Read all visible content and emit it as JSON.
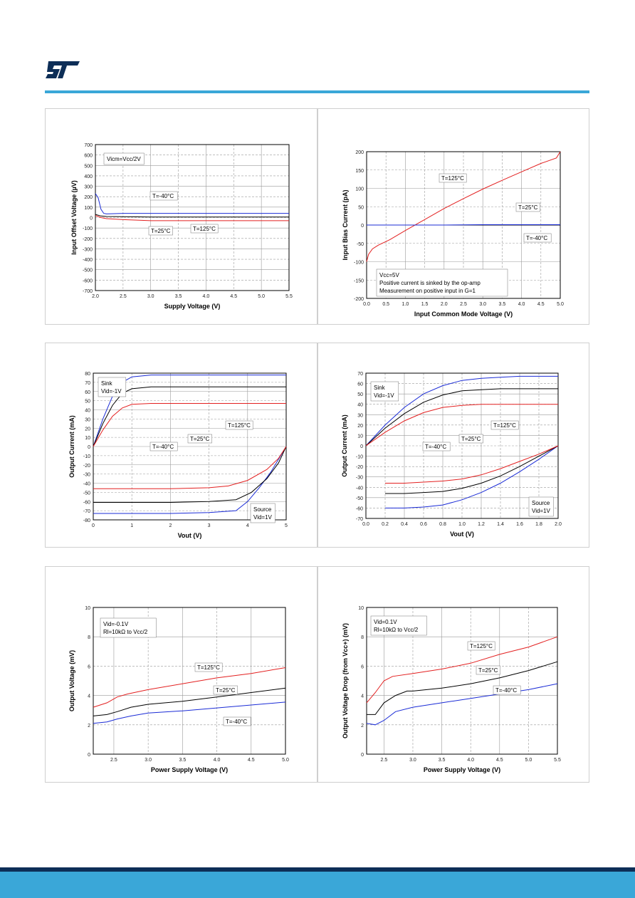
{
  "colors": {
    "accent": "#3aa7d8",
    "footer_dark": "#0d2e57",
    "red": "#e32020",
    "blue": "#1a2bd6",
    "black": "#000000"
  },
  "logo": {
    "name": "st-logo-icon"
  },
  "charts": {
    "c1": {
      "type": "line",
      "xlabel": "Supply Voltage (V)",
      "ylabel": "Input Offset Voltage (µV)",
      "xlim": [
        2.0,
        5.5
      ],
      "ylim": [
        -700,
        700
      ],
      "xticks": [
        "2.0",
        "2.5",
        "3.0",
        "3.5",
        "4.0",
        "4.5",
        "5.0",
        "5.5"
      ],
      "yticks": [
        "-700",
        "-600",
        "-500",
        "-400",
        "-300",
        "-200",
        "-100",
        "0",
        "100",
        "200",
        "300",
        "400",
        "500",
        "600",
        "700"
      ],
      "legend": [
        "Vicm=Vcc/2V"
      ],
      "annotations": [
        "T=-40°C",
        "T=25°C",
        "T=125°C"
      ],
      "series": [
        {
          "name": "T=-40°C",
          "color": "blue",
          "x": [
            2.0,
            2.05,
            2.1,
            2.15,
            2.2,
            2.5,
            3.0,
            4.0,
            5.0,
            5.5
          ],
          "y": [
            230,
            190,
            80,
            40,
            35,
            40,
            40,
            40,
            40,
            40
          ]
        },
        {
          "name": "T=25°C",
          "color": "black",
          "x": [
            2.0,
            2.1,
            2.2,
            2.5,
            3.0,
            4.0,
            5.0,
            5.5
          ],
          "y": [
            30,
            15,
            10,
            8,
            5,
            5,
            5,
            5
          ]
        },
        {
          "name": "T=125°C",
          "color": "red",
          "x": [
            2.0,
            2.1,
            2.2,
            2.5,
            3.0,
            4.0,
            5.0,
            5.5
          ],
          "y": [
            20,
            0,
            -10,
            -20,
            -30,
            -30,
            -30,
            -30
          ]
        }
      ]
    },
    "c2": {
      "type": "line",
      "xlabel": "Input Common Mode Voltage (V)",
      "ylabel": "Input Bias Current (pA)",
      "xlim": [
        0.0,
        5.0
      ],
      "ylim": [
        -200,
        200
      ],
      "xticks": [
        "0.0",
        "0.5",
        "1.0",
        "1.5",
        "2.0",
        "2.5",
        "3.0",
        "3.5",
        "4.0",
        "4.5",
        "5.0"
      ],
      "yticks": [
        "-200",
        "-150",
        "-100",
        "-50",
        "0",
        "50",
        "100",
        "150",
        "200"
      ],
      "legend": [
        "Vcc=5V",
        "Positive current is sinked by the op-amp",
        "Measurement on positive input in G=1"
      ],
      "annotations": [
        "T=125°C",
        "T=25°C",
        "T=-40°C"
      ],
      "series": [
        {
          "name": "T=125°C",
          "color": "red",
          "x": [
            0.0,
            0.05,
            0.15,
            0.3,
            0.6,
            1.0,
            1.5,
            2.0,
            2.5,
            3.0,
            3.5,
            4.0,
            4.5,
            4.9,
            5.0
          ],
          "y": [
            -100,
            -80,
            -65,
            -55,
            -40,
            -15,
            15,
            45,
            72,
            98,
            122,
            145,
            168,
            183,
            200
          ]
        },
        {
          "name": "T=25°C",
          "color": "black",
          "x": [
            0.0,
            1.0,
            2.0,
            3.0,
            4.0,
            5.0
          ],
          "y": [
            0,
            0,
            0,
            0,
            0,
            0
          ]
        },
        {
          "name": "T=-40°C",
          "color": "blue",
          "x": [
            0.0,
            1.0,
            2.0,
            3.0,
            4.0,
            5.0
          ],
          "y": [
            0,
            0,
            0,
            1,
            1,
            1
          ]
        }
      ]
    },
    "c3": {
      "type": "line",
      "xlabel": "Vout (V)",
      "ylabel": "Output Current (mA)",
      "xlim": [
        0,
        5
      ],
      "ylim": [
        -80,
        80
      ],
      "xticks": [
        "0",
        "1",
        "2",
        "3",
        "4",
        "5"
      ],
      "yticks": [
        "-80",
        "-70",
        "-60",
        "-50",
        "-40",
        "-30",
        "-20",
        "-10",
        "0",
        "10",
        "20",
        "30",
        "40",
        "50",
        "60",
        "70",
        "80"
      ],
      "legend": [
        "Sink",
        "Vid=-1V"
      ],
      "legend2": [
        "Source",
        "Vid=1V"
      ],
      "annotations": [
        "T=-40°C",
        "T=25°C",
        "T=125°C"
      ],
      "series": [
        {
          "name": "Sink T=-40°C",
          "color": "blue",
          "x": [
            0,
            0.25,
            0.5,
            0.75,
            1.0,
            1.5,
            2,
            3,
            4,
            5
          ],
          "y": [
            0,
            30,
            55,
            70,
            76,
            78,
            78,
            78,
            78,
            78
          ]
        },
        {
          "name": "Sink T=25°C",
          "color": "black",
          "x": [
            0,
            0.25,
            0.5,
            0.75,
            1.0,
            1.5,
            2,
            3,
            4,
            5
          ],
          "y": [
            0,
            25,
            45,
            58,
            63,
            65,
            65,
            65,
            65,
            65
          ]
        },
        {
          "name": "Sink T=125°C",
          "color": "red",
          "x": [
            0,
            0.25,
            0.5,
            0.75,
            1.0,
            1.5,
            2,
            3,
            4,
            5
          ],
          "y": [
            0,
            18,
            33,
            42,
            46,
            47,
            47,
            47,
            47,
            47
          ]
        },
        {
          "name": "Source T=-40°C",
          "color": "blue",
          "x": [
            0,
            1,
            2,
            3,
            3.7,
            4.0,
            4.3,
            4.6,
            4.8,
            5
          ],
          "y": [
            -73,
            -73,
            -73,
            -72,
            -70,
            -60,
            -45,
            -28,
            -14,
            0
          ]
        },
        {
          "name": "Source T=25°C",
          "color": "black",
          "x": [
            0,
            1,
            2,
            3,
            3.7,
            4.1,
            4.5,
            4.8,
            5
          ],
          "y": [
            -61,
            -61,
            -61,
            -60,
            -58,
            -50,
            -35,
            -18,
            0
          ]
        },
        {
          "name": "Source T=125°C",
          "color": "red",
          "x": [
            0,
            1,
            2,
            3,
            3.5,
            4.0,
            4.5,
            4.8,
            5
          ],
          "y": [
            -46,
            -46,
            -46,
            -45,
            -43,
            -37,
            -25,
            -13,
            0
          ]
        }
      ]
    },
    "c4": {
      "type": "line",
      "xlabel": "Vout (V)",
      "ylabel": "Output Current (mA)",
      "xlim": [
        0.0,
        2.0
      ],
      "ylim": [
        -70,
        70
      ],
      "xticks": [
        "0.0",
        "0.2",
        "0.4",
        "0.6",
        "0.8",
        "1.0",
        "1.2",
        "1.4",
        "1.6",
        "1.8",
        "2.0"
      ],
      "yticks": [
        "-70",
        "-60",
        "-50",
        "-40",
        "-30",
        "-20",
        "-10",
        "0",
        "10",
        "20",
        "30",
        "40",
        "50",
        "60",
        "70"
      ],
      "legend": [
        "Sink",
        "Vid=-1V"
      ],
      "legend2": [
        "Source",
        "Vid=1V"
      ],
      "annotations": [
        "T=-40°C",
        "T=25°C",
        "T=125°C"
      ],
      "series": [
        {
          "name": "Sink T=-40°C",
          "color": "blue",
          "x": [
            0,
            0.2,
            0.4,
            0.6,
            0.8,
            1.0,
            1.2,
            1.4,
            1.6,
            1.8,
            2.0
          ],
          "y": [
            0,
            20,
            37,
            50,
            58,
            63,
            65,
            66,
            67,
            67,
            67
          ]
        },
        {
          "name": "Sink T=25°C",
          "color": "black",
          "x": [
            0,
            0.2,
            0.4,
            0.6,
            0.8,
            1.0,
            1.2,
            1.4,
            1.6,
            1.8,
            2.0
          ],
          "y": [
            0,
            17,
            31,
            42,
            49,
            53,
            54,
            55,
            55,
            55,
            55
          ]
        },
        {
          "name": "Sink T=125°C",
          "color": "red",
          "x": [
            0,
            0.2,
            0.4,
            0.6,
            0.8,
            1.0,
            1.2,
            1.4,
            1.6,
            1.8,
            2.0
          ],
          "y": [
            0,
            13,
            24,
            32,
            37,
            39,
            40,
            40,
            40,
            40,
            40
          ]
        },
        {
          "name": "Source T=-40°C",
          "color": "blue",
          "x": [
            0.2,
            0.4,
            0.6,
            0.8,
            1.0,
            1.2,
            1.4,
            1.6,
            1.8,
            2.0
          ],
          "y": [
            -60,
            -60,
            -59,
            -57,
            -52,
            -45,
            -36,
            -25,
            -13,
            0
          ]
        },
        {
          "name": "Source T=25°C",
          "color": "black",
          "x": [
            0.2,
            0.4,
            0.6,
            0.8,
            1.0,
            1.2,
            1.4,
            1.6,
            1.8,
            2.0
          ],
          "y": [
            -46,
            -46,
            -45,
            -44,
            -41,
            -36,
            -29,
            -20,
            -10,
            0
          ]
        },
        {
          "name": "Source T=125°C",
          "color": "red",
          "x": [
            0.2,
            0.4,
            0.6,
            0.8,
            1.0,
            1.2,
            1.4,
            1.6,
            1.8,
            2.0
          ],
          "y": [
            -36,
            -36,
            -35,
            -34,
            -32,
            -28,
            -22,
            -15,
            -8,
            0
          ]
        }
      ]
    },
    "c5": {
      "type": "line",
      "xlabel": "Power Supply Voltage (V)",
      "ylabel": "Output Voltage (mV)",
      "xlim": [
        2.2,
        5.0
      ],
      "ylim": [
        0,
        10
      ],
      "xticks": [
        "2.5",
        "3.0",
        "3.5",
        "4.0",
        "4.5",
        "5.0"
      ],
      "yticks": [
        "0",
        "2",
        "4",
        "6",
        "8",
        "10"
      ],
      "legend": [
        "Vid=-0.1V",
        "Rl=10kΩ to Vcc/2"
      ],
      "annotations": [
        "T=125°C",
        "T=25°C",
        "T=-40°C"
      ],
      "series": [
        {
          "name": "T=125°C",
          "color": "red",
          "x": [
            2.2,
            2.4,
            2.55,
            2.7,
            3.0,
            3.5,
            4.0,
            4.5,
            5.0
          ],
          "y": [
            3.2,
            3.5,
            3.9,
            4.1,
            4.4,
            4.8,
            5.2,
            5.5,
            5.9
          ]
        },
        {
          "name": "T=25°C",
          "color": "black",
          "x": [
            2.2,
            2.4,
            2.55,
            2.75,
            3.0,
            3.5,
            4.0,
            4.5,
            5.0
          ],
          "y": [
            2.6,
            2.7,
            2.9,
            3.2,
            3.4,
            3.6,
            3.9,
            4.2,
            4.5
          ]
        },
        {
          "name": "T=-40°C",
          "color": "blue",
          "x": [
            2.2,
            2.4,
            2.55,
            2.75,
            3.0,
            3.5,
            4.0,
            4.5,
            5.0
          ],
          "y": [
            2.1,
            2.2,
            2.4,
            2.6,
            2.8,
            2.95,
            3.15,
            3.35,
            3.55
          ]
        }
      ]
    },
    "c6": {
      "type": "line",
      "xlabel": "Power Supply Voltage (V)",
      "ylabel": "Output Voltage Drop (from Vcc+) (mV)",
      "xlim": [
        2.2,
        5.5
      ],
      "ylim": [
        0,
        10
      ],
      "xticks": [
        "2.5",
        "3.0",
        "3.5",
        "4.0",
        "4.5",
        "5.0",
        "5.5"
      ],
      "yticks": [
        "0",
        "2",
        "4",
        "6",
        "8",
        "10"
      ],
      "legend": [
        "Vid=0.1V",
        "Rl=10kΩ to Vcc/2"
      ],
      "annotations": [
        "T=125°C",
        "T=25°C",
        "T=-40°C"
      ],
      "series": [
        {
          "name": "T=125°C",
          "color": "red",
          "x": [
            2.2,
            2.35,
            2.5,
            2.65,
            3.0,
            3.5,
            4.0,
            4.5,
            5.0,
            5.5
          ],
          "y": [
            3.5,
            4.2,
            5.0,
            5.3,
            5.5,
            5.8,
            6.2,
            6.8,
            7.3,
            8.0
          ]
        },
        {
          "name": "T=25°C",
          "color": "black",
          "x": [
            2.2,
            2.35,
            2.5,
            2.7,
            2.9,
            3.0,
            3.5,
            4.0,
            4.5,
            5.0,
            5.5
          ],
          "y": [
            2.7,
            2.7,
            3.5,
            4.0,
            4.3,
            4.3,
            4.5,
            4.8,
            5.2,
            5.7,
            6.3
          ]
        },
        {
          "name": "T=-40°C",
          "color": "blue",
          "x": [
            2.2,
            2.35,
            2.5,
            2.7,
            3.0,
            3.5,
            4.0,
            4.5,
            5.0,
            5.5
          ],
          "y": [
            2.1,
            2.0,
            2.3,
            2.9,
            3.2,
            3.5,
            3.8,
            4.1,
            4.4,
            4.8
          ]
        }
      ]
    }
  }
}
